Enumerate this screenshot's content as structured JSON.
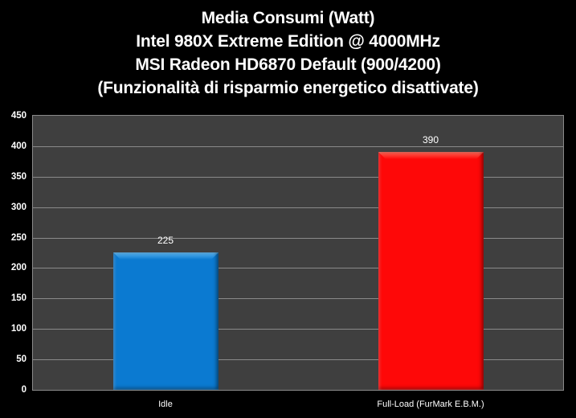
{
  "chart_data": {
    "type": "bar",
    "title_lines": [
      "Media Consumi (Watt)",
      "Intel 980X Extreme Edition @ 4000MHz",
      "MSI Radeon HD6870 Default (900/4200)",
      "(Funzionalità di risparmio energetico disattivate)"
    ],
    "categories": [
      "Idle",
      "Full-Load (FurMark E.B.M.)"
    ],
    "values": [
      225,
      390
    ],
    "value_labels": [
      "225",
      "390"
    ],
    "bar_colors": [
      "#0b7ad1",
      "#fe0808"
    ],
    "bar_highlight_colors": [
      "#5cb6f2",
      "#ff6655"
    ],
    "xlabel": "",
    "ylabel": "",
    "ylim": [
      0,
      450
    ],
    "yticks": [
      0,
      50,
      100,
      150,
      200,
      250,
      300,
      350,
      400,
      450
    ],
    "grid": true,
    "legend": false,
    "colors": {
      "page_bg": "#000000",
      "plot_bg": "#3f3f3f",
      "gridline": "#8a8a8a",
      "border": "#8a8a8a",
      "text": "#ffffff"
    }
  }
}
